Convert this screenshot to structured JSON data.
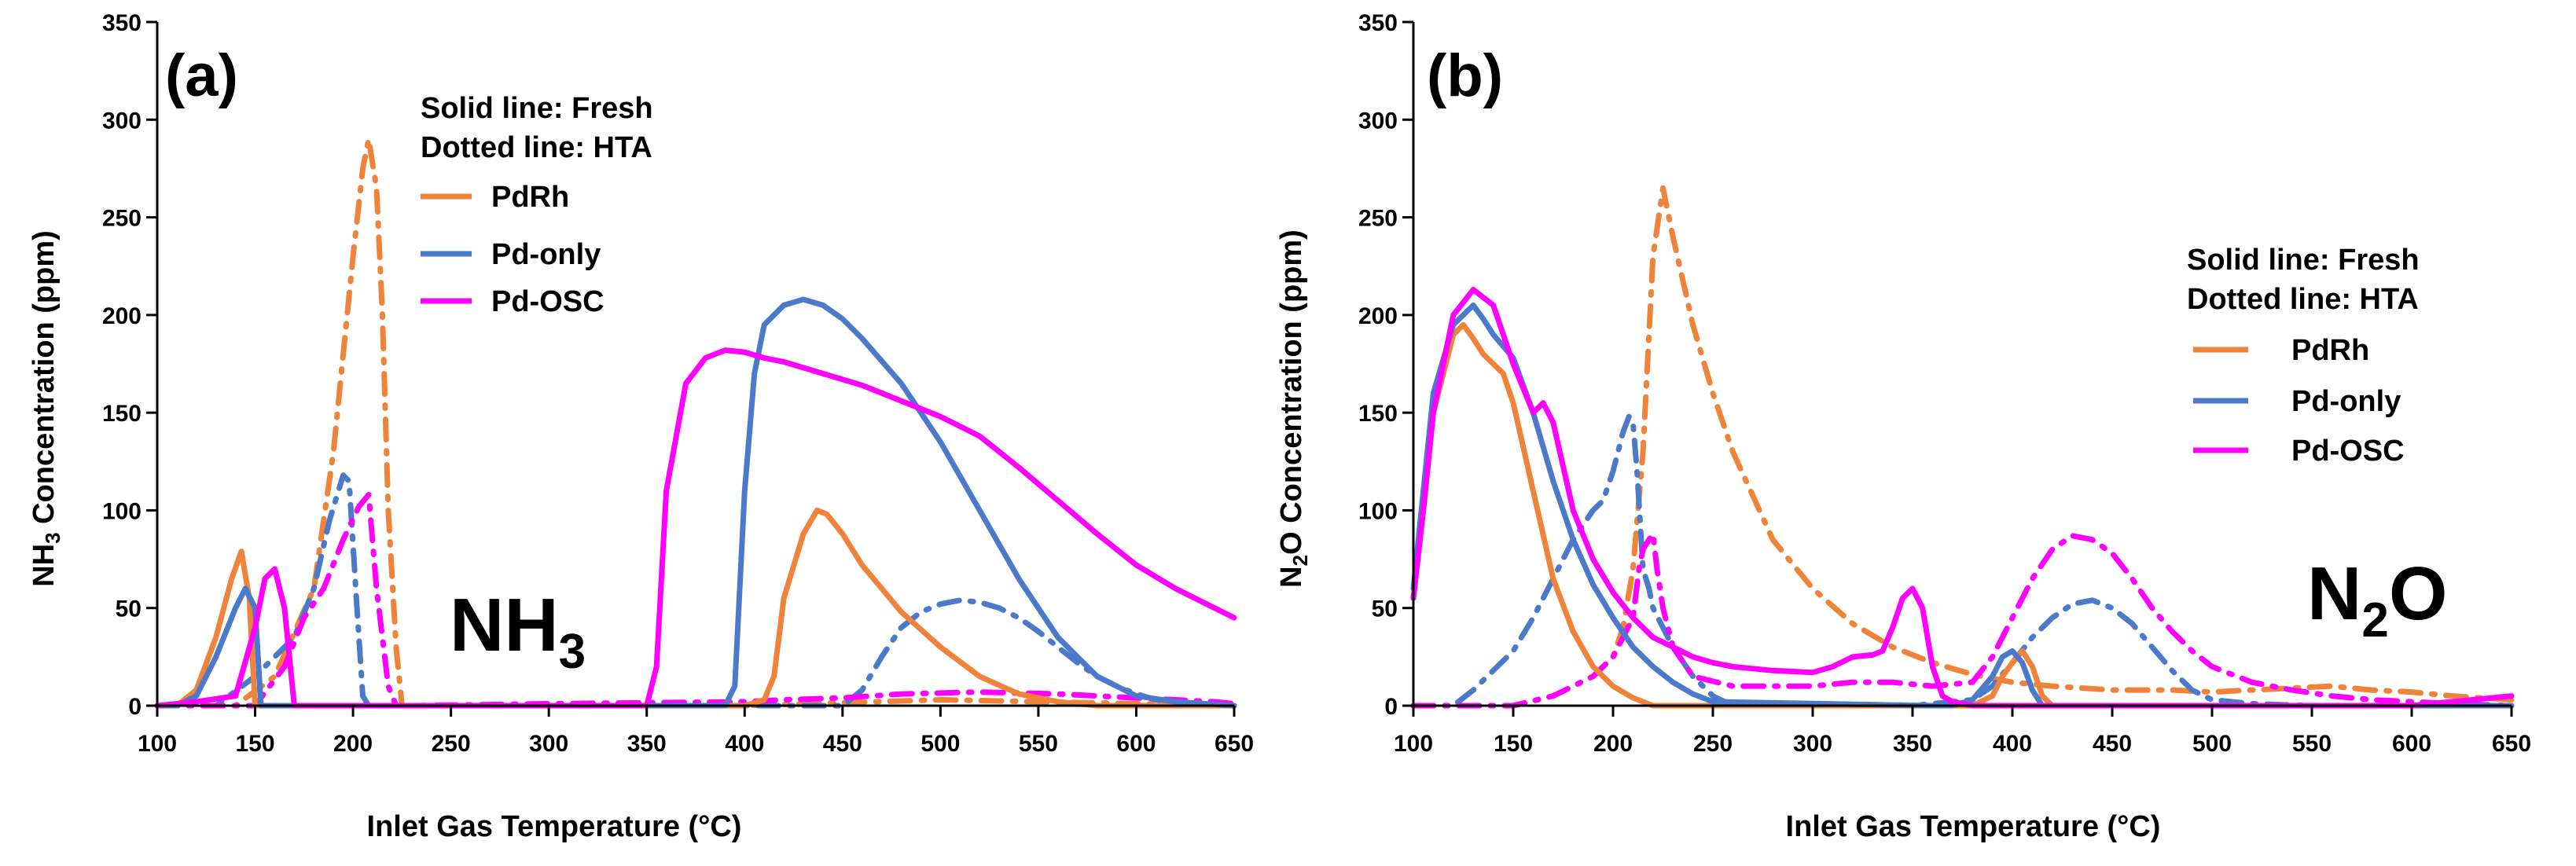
{
  "colors": {
    "PdRh": "#f0833a",
    "Pd-only": "#4a7ac9",
    "Pd-OSC": "#ff00ff",
    "axis": "#000000"
  },
  "chart_data": [
    {
      "type": "line",
      "panel": "(a)",
      "gas_label": {
        "main": "NH",
        "sub": "3"
      },
      "xlabel": "Inlet Gas Temperature (°C)",
      "ylabel": {
        "pre": "NH",
        "sub": "3",
        "post": " Concentration  (ppm)"
      },
      "xlim": [
        100,
        650
      ],
      "ylim": [
        0,
        350
      ],
      "xticks": [
        100,
        150,
        200,
        250,
        300,
        350,
        400,
        450,
        500,
        550,
        600,
        650
      ],
      "yticks": [
        0,
        50,
        100,
        150,
        200,
        250,
        300,
        350
      ],
      "legend": {
        "placement": "top-center",
        "notes": [
          "Solid line: Fresh",
          "Dotted line: HTA"
        ],
        "entries": [
          "PdRh",
          "Pd-only",
          "Pd-OSC"
        ]
      },
      "series": [
        {
          "name": "PdRh",
          "condition": "Fresh",
          "style": "solid",
          "x": [
            100,
            110,
            120,
            130,
            138,
            143,
            147,
            150,
            160,
            400,
            410,
            415,
            420,
            430,
            437,
            442,
            450,
            460,
            480,
            500,
            520,
            540,
            560,
            580,
            600,
            650
          ],
          "y": [
            0,
            0,
            8,
            35,
            65,
            79,
            55,
            0,
            0,
            0,
            3,
            15,
            55,
            88,
            100,
            98,
            88,
            72,
            48,
            30,
            15,
            6,
            2,
            0,
            0,
            0
          ]
        },
        {
          "name": "Pd-only",
          "condition": "Fresh",
          "style": "solid",
          "x": [
            100,
            110,
            120,
            130,
            140,
            145,
            150,
            153,
            160,
            380,
            390,
            395,
            400,
            405,
            410,
            420,
            430,
            440,
            450,
            460,
            480,
            500,
            520,
            540,
            560,
            580,
            600,
            620,
            650
          ],
          "y": [
            0,
            0,
            5,
            25,
            50,
            60,
            50,
            0,
            0,
            0,
            0,
            10,
            110,
            170,
            195,
            205,
            208,
            205,
            198,
            188,
            165,
            135,
            100,
            65,
            35,
            15,
            5,
            2,
            0
          ]
        },
        {
          "name": "Pd-OSC",
          "condition": "Fresh",
          "style": "solid",
          "x": [
            100,
            120,
            140,
            150,
            155,
            160,
            165,
            170,
            350,
            355,
            360,
            370,
            380,
            390,
            400,
            410,
            420,
            440,
            460,
            480,
            500,
            520,
            540,
            560,
            580,
            600,
            620,
            640,
            650
          ],
          "y": [
            0,
            2,
            5,
            40,
            65,
            70,
            50,
            0,
            0,
            20,
            110,
            165,
            178,
            182,
            181,
            178,
            176,
            170,
            164,
            156,
            148,
            138,
            122,
            105,
            88,
            72,
            60,
            50,
            45
          ]
        },
        {
          "name": "PdRh",
          "condition": "HTA",
          "style": "dash-dot",
          "x": [
            100,
            140,
            160,
            180,
            190,
            200,
            205,
            208,
            212,
            215,
            218,
            222,
            225,
            250,
            400,
            500,
            550,
            600,
            650
          ],
          "y": [
            0,
            0,
            15,
            60,
            130,
            230,
            275,
            290,
            265,
            200,
            100,
            30,
            0,
            0,
            0,
            3,
            2,
            1,
            0
          ]
        },
        {
          "name": "Pd-only",
          "condition": "HTA",
          "style": "dash-dot",
          "x": [
            100,
            130,
            150,
            170,
            180,
            188,
            195,
            198,
            202,
            205,
            208,
            250,
            450,
            460,
            470,
            480,
            490,
            500,
            510,
            520,
            530,
            540,
            550,
            560,
            570,
            580,
            590,
            600,
            610,
            620,
            630,
            650
          ],
          "y": [
            0,
            0,
            15,
            35,
            60,
            95,
            118,
            115,
            50,
            5,
            0,
            0,
            0,
            8,
            25,
            40,
            48,
            52,
            54,
            53,
            50,
            45,
            38,
            30,
            22,
            15,
            10,
            6,
            3,
            2,
            1,
            0
          ]
        },
        {
          "name": "Pd-OSC",
          "condition": "HTA",
          "style": "dash-dot",
          "x": [
            100,
            150,
            165,
            175,
            185,
            195,
            203,
            208,
            212,
            218,
            222,
            230,
            300,
            400,
            420,
            450,
            480,
            520,
            560,
            600,
            640,
            650
          ],
          "y": [
            0,
            0,
            20,
            45,
            60,
            85,
            102,
            108,
            60,
            10,
            0,
            0,
            1,
            2,
            3,
            4,
            6,
            7,
            6,
            4,
            2,
            1
          ]
        }
      ]
    },
    {
      "type": "line",
      "panel": "(b)",
      "gas_label": {
        "main": "N",
        "sub": "2",
        "post": "O"
      },
      "xlabel": "Inlet Gas Temperature (°C)",
      "ylabel": {
        "pre": "N",
        "sub": "2",
        "post": "O Concentration  (ppm)"
      },
      "xlim": [
        100,
        650
      ],
      "ylim": [
        0,
        350
      ],
      "xticks": [
        100,
        150,
        200,
        250,
        300,
        350,
        400,
        450,
        500,
        550,
        600,
        650
      ],
      "yticks": [
        0,
        50,
        100,
        150,
        200,
        250,
        300,
        350
      ],
      "legend": {
        "placement": "right",
        "notes": [
          "Solid line: Fresh",
          "Dotted line: HTA"
        ],
        "entries": [
          "PdRh",
          "Pd-only",
          "Pd-OSC"
        ]
      },
      "series": [
        {
          "name": "PdRh",
          "condition": "Fresh",
          "style": "solid",
          "x": [
            100,
            105,
            110,
            120,
            125,
            130,
            135,
            140,
            145,
            150,
            160,
            170,
            180,
            190,
            200,
            210,
            215,
            220,
            240,
            380,
            390,
            395,
            400,
            405,
            410,
            415,
            420,
            650
          ],
          "y": [
            60,
            100,
            150,
            190,
            195,
            188,
            180,
            175,
            170,
            155,
            110,
            65,
            38,
            20,
            10,
            4,
            2,
            0,
            0,
            0,
            5,
            15,
            22,
            28,
            20,
            5,
            0,
            0
          ]
        },
        {
          "name": "Pd-only",
          "condition": "Fresh",
          "style": "solid",
          "x": [
            100,
            105,
            110,
            120,
            130,
            135,
            140,
            150,
            160,
            170,
            180,
            190,
            200,
            210,
            220,
            230,
            240,
            250,
            360,
            370,
            380,
            390,
            395,
            400,
            405,
            410,
            415,
            650
          ],
          "y": [
            60,
            110,
            160,
            195,
            205,
            198,
            190,
            178,
            150,
            115,
            85,
            62,
            45,
            30,
            20,
            12,
            6,
            2,
            0,
            0,
            3,
            15,
            25,
            28,
            22,
            8,
            0,
            0
          ]
        },
        {
          "name": "Pd-OSC",
          "condition": "Fresh",
          "style": "solid",
          "x": [
            100,
            105,
            110,
            120,
            130,
            140,
            150,
            160,
            165,
            170,
            180,
            190,
            200,
            210,
            220,
            230,
            240,
            250,
            260,
            280,
            300,
            310,
            320,
            330,
            335,
            340,
            345,
            350,
            355,
            360,
            365,
            370,
            380,
            600,
            650
          ],
          "y": [
            55,
            100,
            150,
            200,
            213,
            205,
            175,
            150,
            155,
            145,
            100,
            75,
            58,
            45,
            35,
            30,
            25,
            22,
            20,
            18,
            17,
            20,
            25,
            26,
            28,
            40,
            55,
            60,
            50,
            20,
            5,
            2,
            0,
            0,
            5
          ]
        },
        {
          "name": "PdRh",
          "condition": "HTA",
          "style": "dash-dot",
          "x": [
            100,
            150,
            170,
            190,
            200,
            205,
            210,
            215,
            220,
            225,
            230,
            240,
            250,
            260,
            280,
            300,
            320,
            340,
            360,
            380,
            400,
            420,
            450,
            480,
            500,
            520,
            540,
            560,
            580,
            600,
            620,
            650
          ],
          "y": [
            0,
            0,
            5,
            15,
            25,
            40,
            70,
            130,
            230,
            265,
            240,
            195,
            160,
            130,
            85,
            60,
            42,
            30,
            22,
            16,
            12,
            10,
            8,
            8,
            7,
            8,
            9,
            10,
            8,
            7,
            5,
            3
          ]
        },
        {
          "name": "Pd-only",
          "condition": "HTA",
          "style": "dash-dot",
          "x": [
            100,
            110,
            120,
            130,
            140,
            150,
            160,
            170,
            180,
            190,
            195,
            200,
            205,
            208,
            210,
            212,
            215,
            218,
            220,
            225,
            230,
            240,
            250,
            260,
            280,
            300,
            350,
            380,
            390,
            400,
            410,
            420,
            430,
            440,
            450,
            460,
            470,
            480,
            490,
            500,
            520,
            550,
            600,
            650
          ],
          "y": [
            0,
            0,
            0,
            8,
            18,
            28,
            45,
            65,
            85,
            100,
            105,
            120,
            140,
            148,
            145,
            120,
            70,
            60,
            50,
            40,
            30,
            15,
            5,
            0,
            0,
            0,
            0,
            3,
            10,
            22,
            35,
            45,
            52,
            54,
            50,
            42,
            30,
            18,
            8,
            3,
            1,
            0,
            0,
            0
          ]
        },
        {
          "name": "Pd-OSC",
          "condition": "HTA",
          "style": "dash-dot",
          "x": [
            100,
            150,
            170,
            190,
            200,
            210,
            213,
            215,
            218,
            220,
            222,
            225,
            230,
            240,
            260,
            280,
            300,
            320,
            340,
            360,
            380,
            390,
            400,
            410,
            420,
            430,
            440,
            450,
            460,
            470,
            480,
            490,
            500,
            520,
            540,
            560,
            580,
            600,
            620,
            650
          ],
          "y": [
            0,
            0,
            5,
            15,
            25,
            45,
            70,
            80,
            85,
            88,
            70,
            50,
            30,
            15,
            10,
            10,
            10,
            12,
            12,
            10,
            12,
            25,
            45,
            65,
            80,
            87,
            85,
            78,
            65,
            50,
            38,
            28,
            20,
            12,
            8,
            5,
            3,
            2,
            1,
            0
          ]
        }
      ]
    }
  ]
}
